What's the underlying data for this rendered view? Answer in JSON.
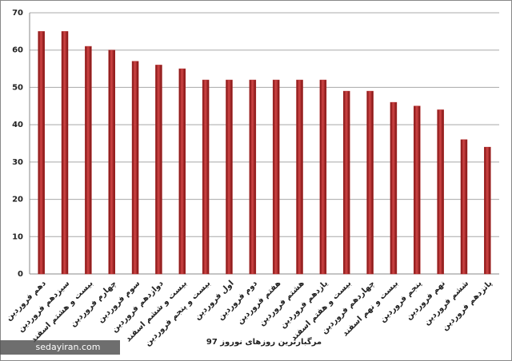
{
  "chart_data": {
    "type": "bar",
    "title": "مرگبارترین روزهای نوروز 97",
    "watermark": "sedayiran.com",
    "categories": [
      "دهم فروردین",
      "سیزدهم فروردین",
      "بیست و هشتم اسفند",
      "چهارم فروردین",
      "سوم فروردین",
      "دوازدهم فروردین",
      "بیست و ششم اسفند",
      "بیست و پنجم فروردین",
      "اول فروردین",
      "دوم فروردین",
      "هفتم فروردین",
      "هشتم فروردین",
      "یازدهم فروردین",
      "بیست و هفتم اسفند",
      "چهاردهم فروردین",
      "بیست و نهم اسفند",
      "پنجم فروردین",
      "نهم فروردین",
      "ششم فروردین",
      "پانزدهم فروردین"
    ],
    "values": [
      65,
      65,
      61,
      60,
      57,
      56,
      55,
      52,
      52,
      52,
      52,
      52,
      52,
      49,
      49,
      46,
      45,
      44,
      36,
      34
    ],
    "color": "#b22a2a",
    "ylim": [
      0,
      70
    ],
    "yticks": [
      0,
      10,
      20,
      30,
      40,
      50,
      60,
      70
    ],
    "grid": true
  }
}
